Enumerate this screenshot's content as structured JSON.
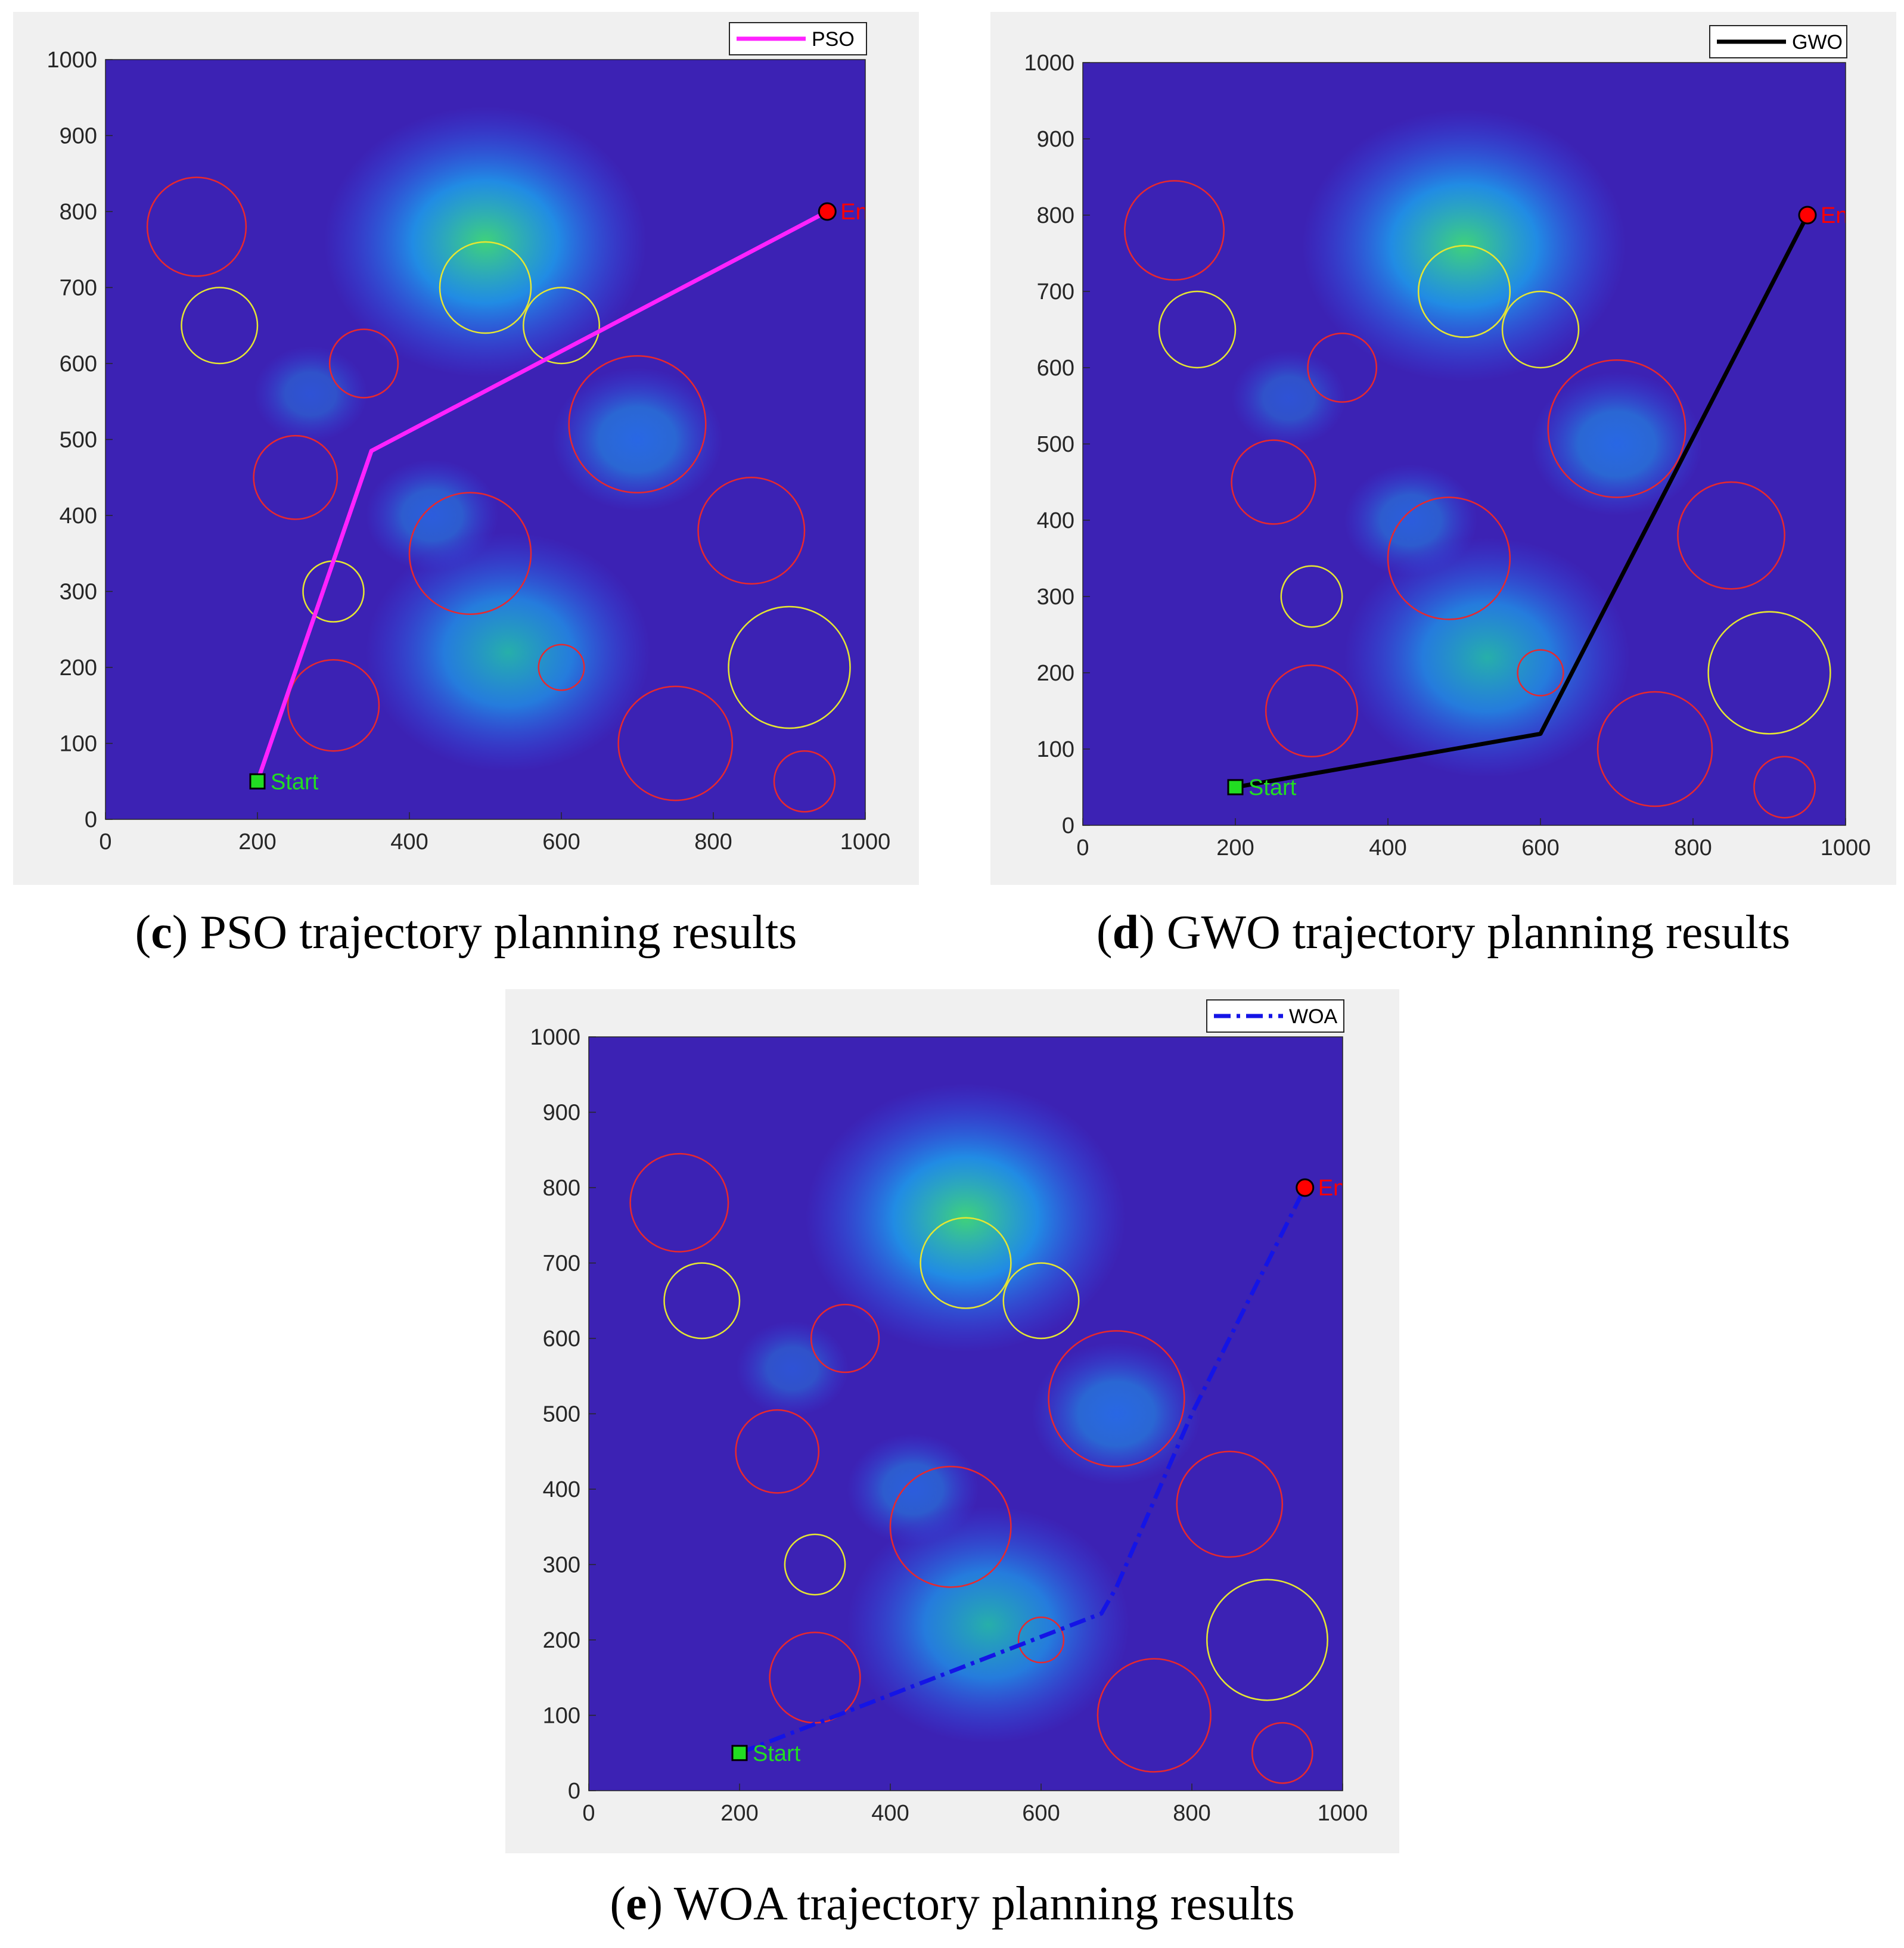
{
  "threats": {
    "red": [
      [
        120,
        780,
        65
      ],
      [
        340,
        600,
        45
      ],
      [
        250,
        450,
        55
      ],
      [
        480,
        350,
        80
      ],
      [
        700,
        520,
        90
      ],
      [
        850,
        380,
        70
      ],
      [
        600,
        200,
        30
      ],
      [
        300,
        150,
        60
      ],
      [
        750,
        100,
        75
      ],
      [
        920,
        50,
        40
      ]
    ],
    "yellow": [
      [
        150,
        650,
        50
      ],
      [
        500,
        700,
        60
      ],
      [
        600,
        650,
        50
      ],
      [
        300,
        300,
        40
      ],
      [
        900,
        200,
        80
      ]
    ]
  },
  "colors": {
    "red_threat": "#e8282e",
    "yellow_threat": "#e6e632",
    "start": "#22dd22",
    "end": "#ff0000",
    "pso": "#ff22ff",
    "gwo": "#000000",
    "woa": "#1414e6",
    "map_bg": "#3c22b4"
  },
  "chart_data": [
    {
      "type": "line",
      "xlim": [
        0,
        1000
      ],
      "ylim": [
        0,
        1000
      ],
      "x_ticks": [
        "0",
        "200",
        "400",
        "600",
        "800",
        "1000"
      ],
      "y_ticks": [
        "0",
        "100",
        "200",
        "300",
        "400",
        "500",
        "600",
        "700",
        "800",
        "900",
        "1000"
      ],
      "legend_position": "top-right",
      "series": [
        {
          "name": "PSO",
          "style": "solid",
          "color": "#ff22ff",
          "x": [
            200,
            350,
            950
          ],
          "y": [
            50,
            485,
            800
          ]
        }
      ],
      "start": {
        "label": "Start",
        "x": 200,
        "y": 50
      },
      "end": {
        "label": "End",
        "x": 950,
        "y": 800
      },
      "caption_letter": "c",
      "caption_text": " PSO trajectory planning results"
    },
    {
      "type": "line",
      "xlim": [
        0,
        1000
      ],
      "ylim": [
        0,
        1000
      ],
      "x_ticks": [
        "0",
        "200",
        "400",
        "600",
        "800",
        "1000"
      ],
      "y_ticks": [
        "0",
        "100",
        "200",
        "300",
        "400",
        "500",
        "600",
        "700",
        "800",
        "900",
        "1000"
      ],
      "legend_position": "top-right",
      "series": [
        {
          "name": "GWO",
          "style": "solid",
          "color": "#000000",
          "x": [
            200,
            600,
            950
          ],
          "y": [
            50,
            120,
            800
          ]
        }
      ],
      "start": {
        "label": "Start",
        "x": 200,
        "y": 50
      },
      "end": {
        "label": "End",
        "x": 950,
        "y": 800
      },
      "caption_letter": "d",
      "caption_text": " GWO trajectory planning results"
    },
    {
      "type": "line",
      "xlim": [
        0,
        1000
      ],
      "ylim": [
        0,
        1000
      ],
      "x_ticks": [
        "0",
        "200",
        "400",
        "600",
        "800",
        "1000"
      ],
      "y_ticks": [
        "0",
        "100",
        "200",
        "300",
        "400",
        "500",
        "600",
        "700",
        "800",
        "900",
        "1000"
      ],
      "legend_position": "top-right",
      "series": [
        {
          "name": "WOA",
          "style": "dashdot",
          "color": "#1414e6",
          "x": [
            200,
            330,
            680,
            700,
            800,
            950
          ],
          "y": [
            50,
            100,
            235,
            270,
            500,
            800
          ]
        }
      ],
      "start": {
        "label": "Start",
        "x": 200,
        "y": 50
      },
      "end": {
        "label": "End",
        "x": 950,
        "y": 800
      },
      "caption_letter": "e",
      "caption_text": " WOA trajectory planning results"
    }
  ]
}
